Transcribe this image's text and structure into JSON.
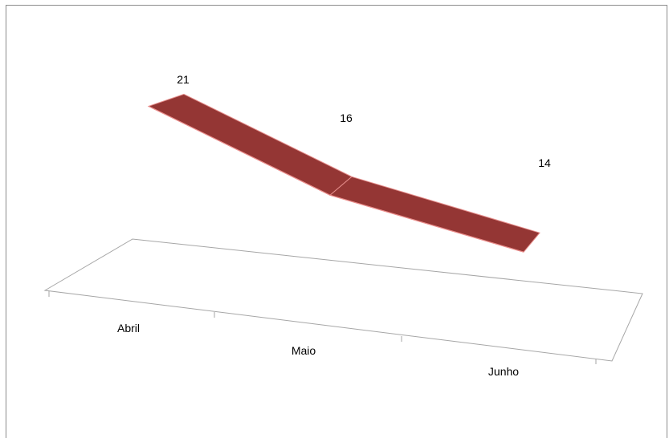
{
  "chart_data": {
    "type": "line",
    "categories": [
      "Abril",
      "Maio",
      "Junho"
    ],
    "series": [
      {
        "values": [
          21,
          16,
          14
        ]
      }
    ],
    "data_labels": [
      "21",
      "16",
      "14"
    ],
    "title": "",
    "xlabel": "",
    "ylabel": "",
    "legend": "none",
    "grid": false,
    "ribbon_color": "#943634"
  }
}
